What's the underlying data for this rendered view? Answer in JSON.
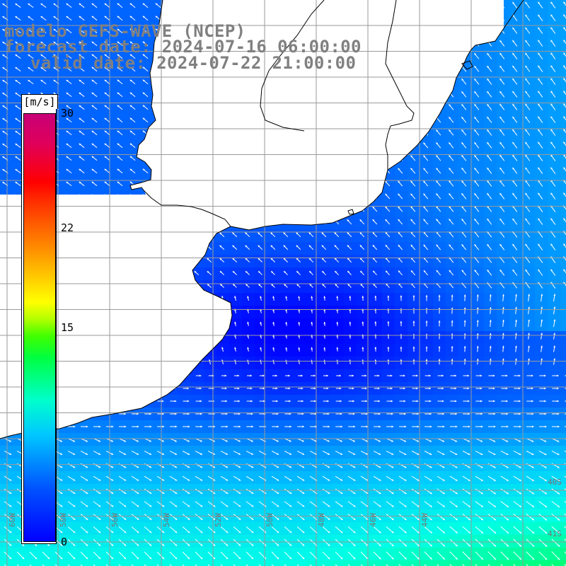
{
  "titles": {
    "model": "modelo GEFS-WAVE (NCEP)",
    "forecast": "forecast date: 2024-07-16 06:00:00",
    "valid": "valid date: 2024-07-22 21:00:00"
  },
  "colorbar": {
    "unit": "[m/s]",
    "min": 0,
    "max": 30,
    "ticks": [
      "30",
      "22",
      "15",
      "0"
    ],
    "tick_values": [
      30,
      22,
      15,
      0
    ]
  },
  "map": {
    "variable": "wind speed and direction",
    "sea_color_range": [
      "#0000ff",
      "#00ffff",
      "#00ff80"
    ],
    "land_color": "#ffffff",
    "grid_color": "#9a9a9a",
    "coast_color": "#000000",
    "lon_labels": [
      "60W",
      "58W",
      "56W",
      "54W",
      "52W",
      "50W",
      "48W",
      "46W",
      "44W"
    ],
    "lat_labels": [
      "40S",
      "41S"
    ]
  }
}
